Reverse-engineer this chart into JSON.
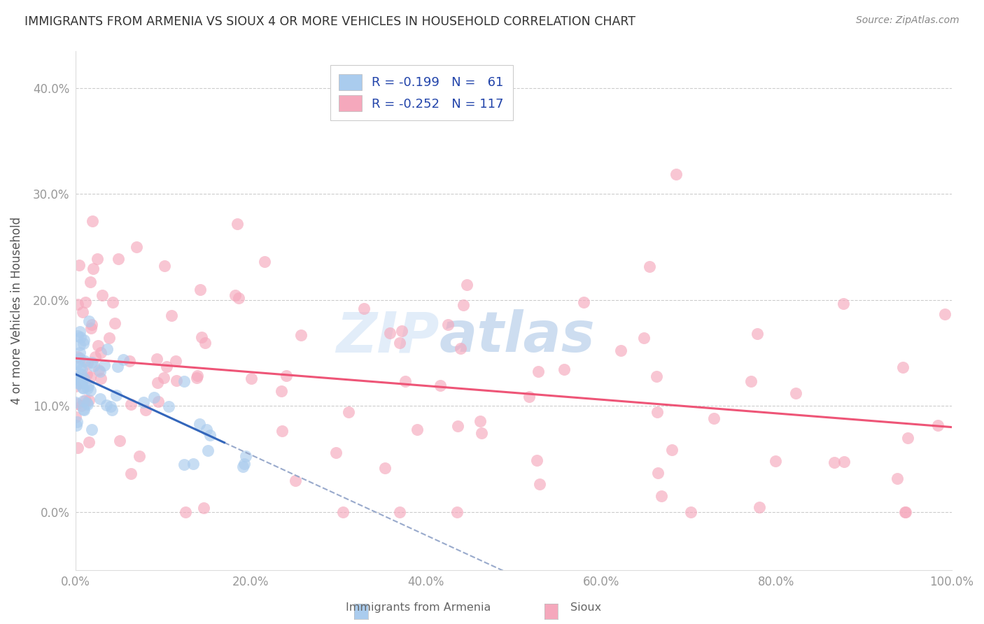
{
  "title": "IMMIGRANTS FROM ARMENIA VS SIOUX 4 OR MORE VEHICLES IN HOUSEHOLD CORRELATION CHART",
  "source": "Source: ZipAtlas.com",
  "ylabel": "4 or more Vehicles in Household",
  "xlim": [
    0.0,
    1.0
  ],
  "ylim": [
    -0.055,
    0.435
  ],
  "yticks": [
    0.0,
    0.1,
    0.2,
    0.3,
    0.4
  ],
  "ytick_labels": [
    "0.0%",
    "10.0%",
    "20.0%",
    "30.0%",
    "40.0%"
  ],
  "xticks": [
    0.0,
    0.2,
    0.4,
    0.6,
    0.8,
    1.0
  ],
  "xtick_labels": [
    "0.0%",
    "20.0%",
    "40.0%",
    "60.0%",
    "80.0%",
    "100.0%"
  ],
  "legend_R1": "R = -0.199",
  "legend_N1": "N =  61",
  "legend_R2": "R = -0.252",
  "legend_N2": "N = 117",
  "color_blue": "#aaccee",
  "color_pink": "#f5a8bc",
  "line_blue": "#3366bb",
  "line_pink": "#ee5577",
  "line_dashed_color": "#99aacc",
  "background": "#ffffff",
  "grid_color": "#cccccc",
  "title_color": "#333333",
  "legend_text_color": "#2244aa",
  "source_color": "#888888",
  "watermark_zip_color": "#dde8f5",
  "watermark_atlas_color": "#c8d8ec"
}
